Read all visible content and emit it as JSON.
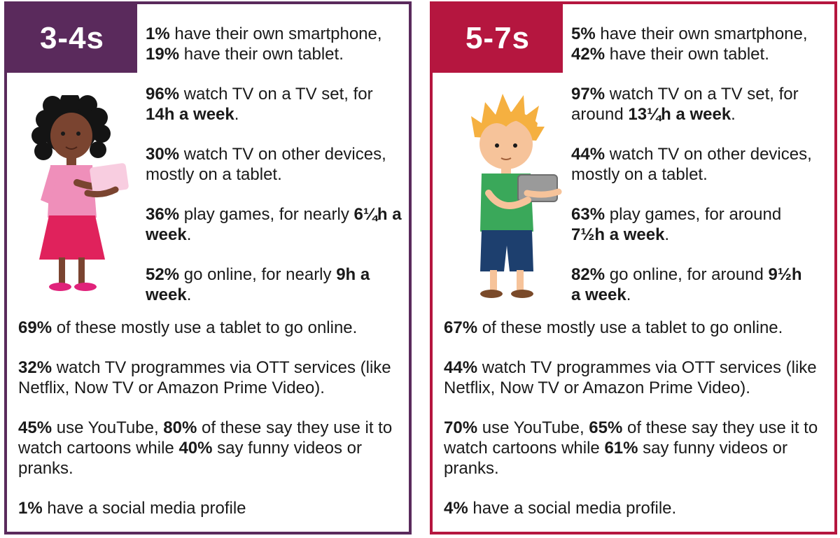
{
  "panels": [
    {
      "age": "3-4s",
      "accent": "#5a2a5c",
      "top_stats": [
        [
          {
            "b": "1%"
          },
          {
            "t": " have their own smartphone,\n"
          },
          {
            "b": "19%"
          },
          {
            "t": " have their own tablet."
          }
        ],
        [
          {
            "b": "96%"
          },
          {
            "t": " watch TV on a TV set, for\n"
          },
          {
            "b": "14h a week"
          },
          {
            "t": "."
          }
        ],
        [
          {
            "b": "30%"
          },
          {
            "t": " watch TV on other devices,\nmostly on a tablet."
          }
        ],
        [
          {
            "b": "36%"
          },
          {
            "t": " play games, for nearly "
          },
          {
            "b": "6¼h a\nweek"
          },
          {
            "t": "."
          }
        ],
        [
          {
            "b": "52%"
          },
          {
            "t": " go online, for nearly "
          },
          {
            "b": "9h a\nweek"
          },
          {
            "t": "."
          }
        ]
      ],
      "bottom_stats": [
        [
          {
            "b": "69%"
          },
          {
            "t": " of these mostly use a tablet to go online."
          }
        ],
        [
          {
            "b": "32%"
          },
          {
            "t": " watch TV programmes via OTT services (like\nNetflix, Now TV or Amazon Prime Video)."
          }
        ],
        [
          {
            "b": "45%"
          },
          {
            "t": " use YouTube, "
          },
          {
            "b": "80%"
          },
          {
            "t": " of these say they use it to\nwatch cartoons while "
          },
          {
            "b": "40%"
          },
          {
            "t": " say funny videos or\npranks."
          }
        ],
        [
          {
            "b": "1%"
          },
          {
            "t": " have a social media profile"
          }
        ]
      ]
    },
    {
      "age": "5-7s",
      "accent": "#b5163f",
      "top_stats": [
        [
          {
            "b": "5%"
          },
          {
            "t": " have their own smartphone,\n"
          },
          {
            "b": "42%"
          },
          {
            "t": " have their own tablet."
          }
        ],
        [
          {
            "b": "97%"
          },
          {
            "t": " watch TV on a TV set, for\naround "
          },
          {
            "b": "13¼h a week"
          },
          {
            "t": "."
          }
        ],
        [
          {
            "b": "44%"
          },
          {
            "t": " watch TV on other devices,\nmostly on a tablet."
          }
        ],
        [
          {
            "b": "63%"
          },
          {
            "t": " play games, for around\n"
          },
          {
            "b": "7½h a week"
          },
          {
            "t": "."
          }
        ],
        [
          {
            "b": "82%"
          },
          {
            "t": " go online, for around "
          },
          {
            "b": "9½h\na week"
          },
          {
            "t": "."
          }
        ]
      ],
      "bottom_stats": [
        [
          {
            "b": "67%"
          },
          {
            "t": " of these mostly use a tablet to go online."
          }
        ],
        [
          {
            "b": "44%"
          },
          {
            "t": " watch TV programmes via OTT services (like\nNetflix, Now TV or Amazon Prime Video)."
          }
        ],
        [
          {
            "b": "70%"
          },
          {
            "t": " use YouTube, "
          },
          {
            "b": "65%"
          },
          {
            "t": " of these say they use it to\nwatch cartoons while "
          },
          {
            "b": "61%"
          },
          {
            "t": " say funny videos or\npranks."
          }
        ],
        [
          {
            "b": "4%"
          },
          {
            "t": " have a social media profile."
          }
        ]
      ]
    }
  ],
  "icons": [
    "girl-with-tablet-illustration",
    "boy-with-tablet-illustration"
  ]
}
